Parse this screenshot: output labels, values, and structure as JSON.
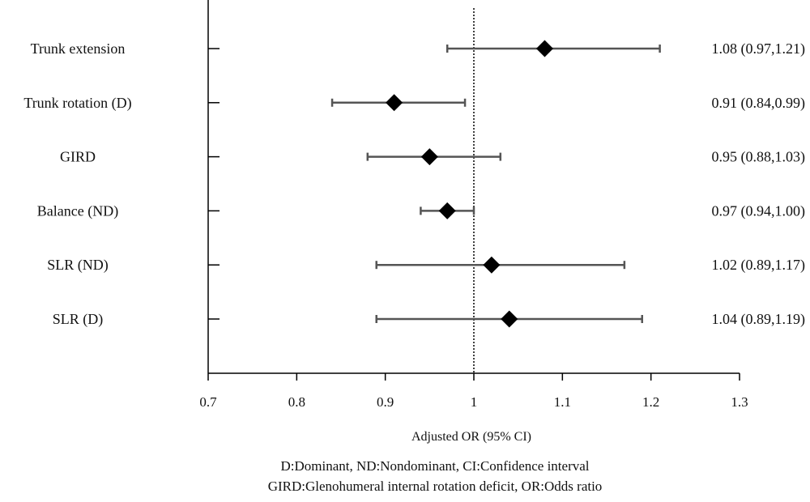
{
  "chart_data": {
    "type": "forest",
    "xlabel": "Adjusted OR (95% CI)",
    "xlim": [
      0.7,
      1.3
    ],
    "xticks": [
      0.7,
      0.8,
      0.9,
      1,
      1.1,
      1.2,
      1.3
    ],
    "xtick_labels": [
      "0.7",
      "0.8",
      "0.9",
      "1",
      "1.1",
      "1.2",
      "1.3"
    ],
    "reference_line": 1,
    "grid": false,
    "rows": [
      {
        "label": "Trunk extension",
        "or": 1.08,
        "lo": 0.97,
        "hi": 1.21,
        "text": "1.08 (0.97,1.21)"
      },
      {
        "label": "Trunk rotation (D)",
        "or": 0.91,
        "lo": 0.84,
        "hi": 0.99,
        "text": "0.91 (0.84,0.99)"
      },
      {
        "label": "GIRD",
        "or": 0.95,
        "lo": 0.88,
        "hi": 1.03,
        "text": "0.95 (0.88,1.03)"
      },
      {
        "label": "Balance (ND)",
        "or": 0.97,
        "lo": 0.94,
        "hi": 1.0,
        "text": "0.97 (0.94,1.00)"
      },
      {
        "label": "SLR (ND)",
        "or": 1.02,
        "lo": 0.89,
        "hi": 1.17,
        "text": "1.02 (0.89,1.17)"
      },
      {
        "label": "SLR (D)",
        "or": 1.04,
        "lo": 0.89,
        "hi": 1.19,
        "text": "1.04 (0.89,1.19)"
      }
    ],
    "footnotes": [
      "D:Dominant, ND:Nondominant,  CI:Confidence interval",
      "GIRD:Glenohumeral internal rotation deficit, OR:Odds ratio"
    ],
    "colors": {
      "marker": "#000000",
      "ci_line": "#555555",
      "axis": "#000000"
    }
  }
}
